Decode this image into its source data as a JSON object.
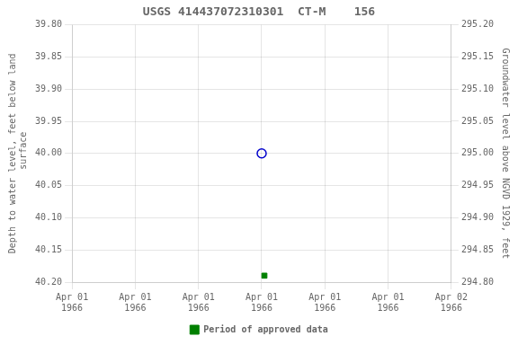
{
  "chart_data": {
    "type": "scatter",
    "title": "USGS 414437072310301  CT-M    156",
    "ylabel": "Depth to water level, feet below land\n surface",
    "y2label": "Groundwater level above NGVD 1929, feet",
    "xlim": [
      0,
      7
    ],
    "xticks": [
      {
        "value": 0,
        "label": "Apr 01\n1966"
      },
      {
        "value": 1.1666666666666667,
        "label": "Apr 01\n1966"
      },
      {
        "value": 2.3333333333333335,
        "label": "Apr 01\n1966"
      },
      {
        "value": 3.5,
        "label": "Apr 01\n1966"
      },
      {
        "value": 4.666666666666667,
        "label": "Apr 01\n1966"
      },
      {
        "value": 5.833333333333333,
        "label": "Apr 01\n1966"
      },
      {
        "value": 7,
        "label": "Apr 02\n1966"
      }
    ],
    "ylim": [
      40.2,
      39.8
    ],
    "yticks": [
      {
        "value": 39.8,
        "label": "39.80"
      },
      {
        "value": 39.85,
        "label": "39.85"
      },
      {
        "value": 39.9,
        "label": "39.90"
      },
      {
        "value": 39.95,
        "label": "39.95"
      },
      {
        "value": 40.0,
        "label": "40.00"
      },
      {
        "value": 40.05,
        "label": "40.05"
      },
      {
        "value": 40.1,
        "label": "40.10"
      },
      {
        "value": 40.15,
        "label": "40.15"
      },
      {
        "value": 40.2,
        "label": "40.20"
      }
    ],
    "y2lim": [
      294.8,
      295.2
    ],
    "y2ticks": [
      {
        "value": 295.2,
        "label": "295.20"
      },
      {
        "value": 295.15,
        "label": "295.15"
      },
      {
        "value": 295.1,
        "label": "295.10"
      },
      {
        "value": 295.05,
        "label": "295.05"
      },
      {
        "value": 295.0,
        "label": "295.00"
      },
      {
        "value": 294.95,
        "label": "294.95"
      },
      {
        "value": 294.9,
        "label": "294.90"
      },
      {
        "value": 294.85,
        "label": "294.85"
      },
      {
        "value": 294.8,
        "label": "294.80"
      }
    ],
    "grid": true,
    "legend": "bottom",
    "series": [
      {
        "color": "#0000cc",
        "marker": "open_circle",
        "x": [
          3.5
        ],
        "values": [
          40.0
        ]
      },
      {
        "name": "Period of approved data",
        "color": "#008000",
        "marker": "square",
        "x": [
          3.55
        ],
        "values": [
          40.19
        ]
      }
    ]
  }
}
